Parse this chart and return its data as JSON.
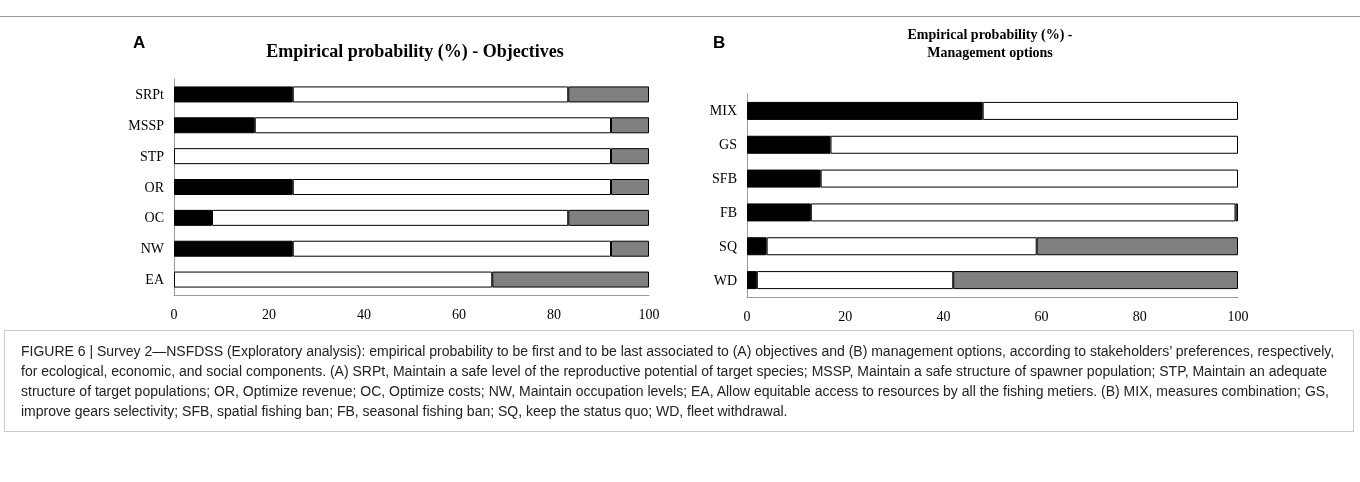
{
  "chart_data": [
    {
      "type": "bar",
      "orientation": "horizontal",
      "stacked": true,
      "title": "Empirical probability (%) - Objectives",
      "categories": [
        "SRPt",
        "MSSP",
        "STP",
        "OR",
        "OC",
        "NW",
        "EA"
      ],
      "series": [
        {
          "color": "#000000",
          "values": [
            25,
            17,
            0,
            25,
            8,
            25,
            0
          ]
        },
        {
          "color": "#ffffff",
          "values": [
            58,
            75,
            92,
            67,
            75,
            67,
            67
          ]
        },
        {
          "color": "#808080",
          "values": [
            17,
            8,
            8,
            8,
            17,
            8,
            33
          ]
        }
      ],
      "xlim": [
        0,
        100
      ],
      "xticks": [
        0,
        20,
        40,
        60,
        80,
        100
      ],
      "grid": false,
      "annotations": [
        "A",
        "FIGURE 6 | Survey 2—NSFDSS (Exploratory analysis): empirical probability to be first and to be last associated to (A) objectives and (B) management options, according to stakeholders’ preferences, respectively, for ecological, economic, and social components. (A) SRPt, Maintain a safe level of the reproductive potential of target species; MSSP, Maintain a safe structure of spawner population; STP, Maintain an adequate structure of target populations; OR, Optimize revenue; OC, Optimize costs; NW, Maintain occupation levels; EA, Allow equitable access to resources by all the fishing metiers. (B) MIX, measures combination; GS, improve gears selectivity; SFB, spatial fishing ban; FB, seasonal fishing ban; SQ, keep the status quo; WD, fleet withdrawal."
      ]
    },
    {
      "type": "bar",
      "orientation": "horizontal",
      "stacked": true,
      "title": "Empirical probability (%) -\nManagement options",
      "categories": [
        "MIX",
        "GS",
        "SFB",
        "FB",
        "SQ",
        "WD"
      ],
      "series": [
        {
          "color": "#000000",
          "values": [
            48,
            17,
            15,
            13,
            4,
            2
          ]
        },
        {
          "color": "#ffffff",
          "values": [
            52,
            83,
            85,
            86.5,
            55,
            40
          ]
        },
        {
          "color": "#808080",
          "values": [
            0,
            0,
            0,
            0.5,
            41,
            58
          ]
        }
      ],
      "xlim": [
        0,
        100
      ],
      "xticks": [
        0,
        20,
        40,
        60,
        80,
        100
      ],
      "grid": false,
      "annotations": [
        "B"
      ]
    }
  ]
}
